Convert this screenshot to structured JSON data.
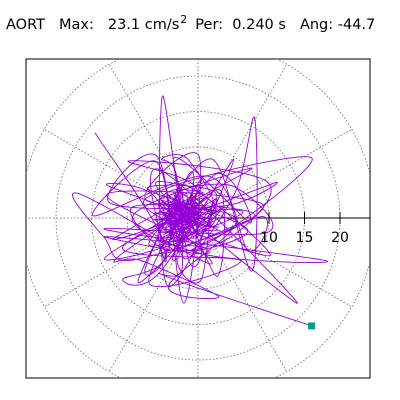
{
  "header": {
    "channel": "AORT",
    "max_label": "Max:",
    "max_value": "23.1",
    "max_unit": "cm/s",
    "max_unit_exp": "2",
    "per_label": "Per:",
    "per_value": "0.240",
    "per_unit": "s",
    "ang_label": "Ang:",
    "ang_value": "-44.7"
  },
  "chart_data": {
    "type": "scatter",
    "title": "",
    "coordinate_system": "polar",
    "radial_ticks": [
      10,
      15,
      20
    ],
    "rings": [
      5,
      10,
      15,
      20,
      25
    ],
    "spokes_deg": [
      0,
      30,
      60,
      90,
      120,
      150,
      180,
      210,
      240,
      270,
      300,
      330
    ],
    "rmax": 25,
    "trace_color": "#9400D3",
    "marker_color": "#00A080",
    "end_point": {
      "x": 16.0,
      "y": -15.2
    },
    "description_points": [
      {
        "x": -14.5,
        "y": 12.0
      },
      {
        "x": -5.0,
        "y": 17.2
      },
      {
        "x": 8.0,
        "y": 14.0
      },
      {
        "x": 16.0,
        "y": 8.5
      },
      {
        "x": 9.0,
        "y": 2.0
      },
      {
        "x": -2.0,
        "y": -2.0
      },
      {
        "x": -12.0,
        "y": -3.0
      },
      {
        "x": -17.0,
        "y": 3.5
      },
      {
        "x": -6.0,
        "y": 8.0
      },
      {
        "x": 3.0,
        "y": 4.0
      },
      {
        "x": 6.0,
        "y": -6.0
      },
      {
        "x": -2.0,
        "y": -12.0
      },
      {
        "x": -8.0,
        "y": -6.0
      },
      {
        "x": -3.0,
        "y": 2.0
      },
      {
        "x": 14.0,
        "y": -12.0
      },
      {
        "x": 18.0,
        "y": -6.0
      },
      {
        "x": 6.0,
        "y": 0.5
      },
      {
        "x": -4.0,
        "y": -4.0
      },
      {
        "x": 2.0,
        "y": -1.0
      },
      {
        "x": 16.0,
        "y": -15.2
      }
    ]
  }
}
